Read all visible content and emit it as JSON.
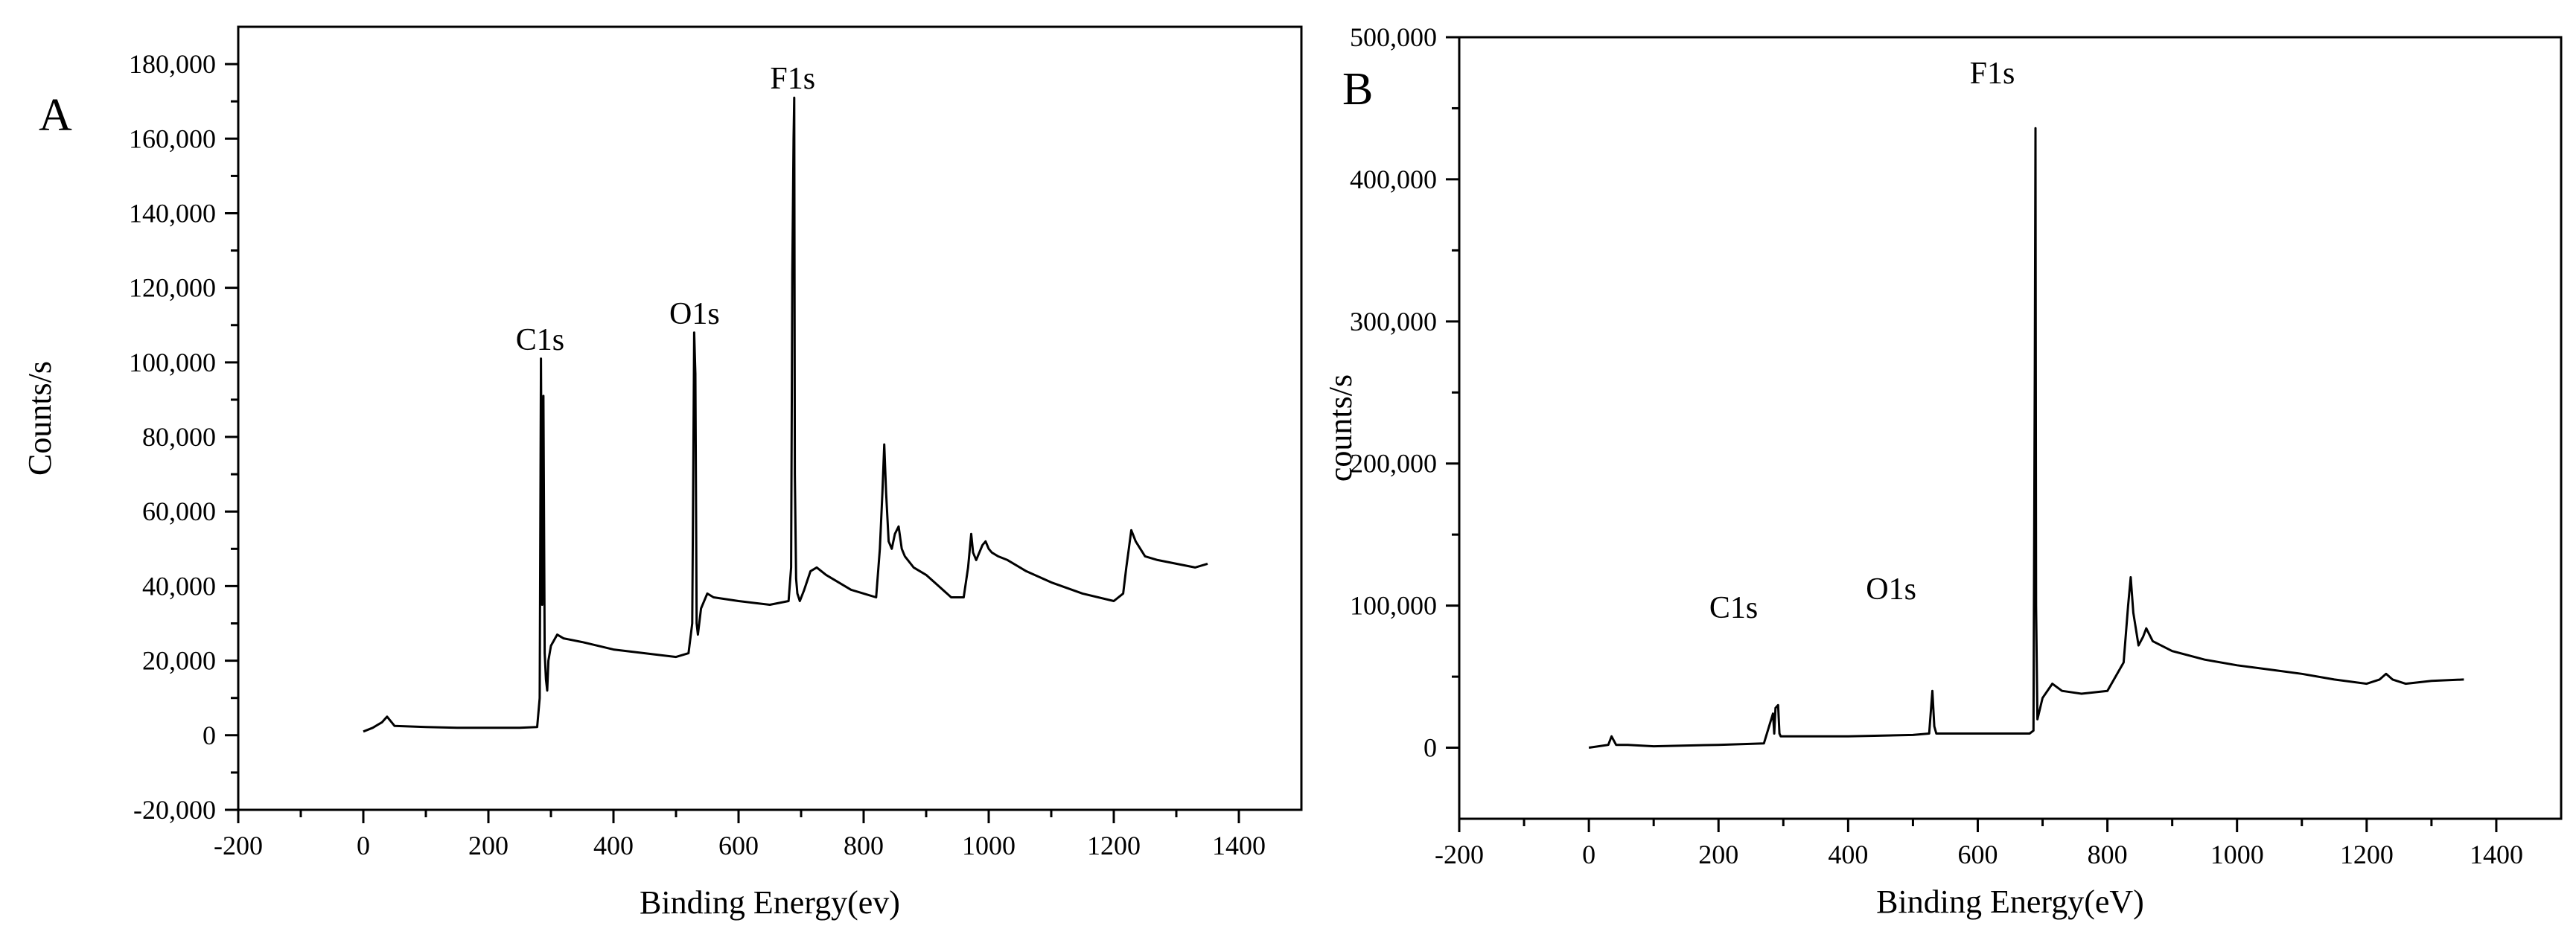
{
  "chart_data": [
    {
      "panel": "A",
      "type": "line",
      "xlabel": "Binding Energy(ev)",
      "ylabel": "Counts/s",
      "xlim": [
        -200,
        1500
      ],
      "ylim": [
        -20000,
        190000
      ],
      "xticks": [
        -200,
        0,
        200,
        400,
        600,
        800,
        1000,
        1200,
        1400
      ],
      "yticks": [
        -20000,
        0,
        20000,
        40000,
        60000,
        80000,
        100000,
        120000,
        140000,
        160000,
        180000
      ],
      "xtick_labels": [
        "-200",
        "0",
        "200",
        "400",
        "600",
        "800",
        "1000",
        "1200",
        "1400"
      ],
      "ytick_labels": [
        "-20,000",
        "0",
        "20,000",
        "40,000",
        "60,000",
        "80,000",
        "100,000",
        "120,000",
        "140,000",
        "160,000",
        "180,000"
      ],
      "grid": false,
      "annotations": [
        {
          "text": "C1s",
          "x": 285,
          "y": 101000
        },
        {
          "text": "O1s",
          "x": 532,
          "y": 108000
        },
        {
          "text": "F1s",
          "x": 689,
          "y": 171000
        }
      ],
      "series": [
        {
          "x": [
            0,
            15,
            30,
            38,
            50,
            100,
            150,
            200,
            250,
            278,
            282,
            284,
            286,
            288,
            290,
            292,
            294,
            296,
            300,
            310,
            320,
            350,
            400,
            450,
            500,
            520,
            526,
            529,
            531,
            533,
            535,
            540,
            550,
            560,
            600,
            650,
            680,
            684,
            686,
            688,
            689,
            690,
            692,
            694,
            698,
            705,
            715,
            725,
            740,
            760,
            780,
            800,
            820,
            826,
            830,
            833,
            836,
            840,
            845,
            850,
            856,
            861,
            866,
            880,
            900,
            920,
            940,
            960,
            967,
            972,
            975,
            980,
            985,
            990,
            995,
            1000,
            1005,
            1015,
            1030,
            1060,
            1100,
            1150,
            1200,
            1215,
            1220,
            1224,
            1228,
            1235,
            1250,
            1270,
            1300,
            1330,
            1350
          ],
          "y": [
            1000,
            2000,
            3500,
            5000,
            2500,
            2200,
            2000,
            2000,
            2000,
            2200,
            10000,
            101000,
            35000,
            91000,
            22000,
            15000,
            12000,
            20000,
            24000,
            27000,
            26000,
            25000,
            23000,
            22000,
            21000,
            22000,
            30000,
            108000,
            97000,
            30000,
            27000,
            34000,
            38000,
            37000,
            36000,
            35000,
            36000,
            45000,
            124000,
            160000,
            171000,
            70000,
            42000,
            38000,
            36000,
            39000,
            44000,
            45000,
            43000,
            41000,
            39000,
            38000,
            37000,
            50000,
            65000,
            78000,
            65000,
            52000,
            50000,
            54000,
            56000,
            50000,
            48000,
            45000,
            43000,
            40000,
            37000,
            37000,
            45000,
            54000,
            49000,
            47000,
            49000,
            51000,
            52000,
            50000,
            49000,
            48000,
            47000,
            44000,
            41000,
            38000,
            36000,
            38000,
            45000,
            50000,
            55000,
            52000,
            48000,
            47000,
            46000,
            45000,
            46000
          ]
        }
      ]
    },
    {
      "panel": "B",
      "type": "line",
      "xlabel": "Binding Energy(eV)",
      "ylabel": "counts/s",
      "xlim": [
        -200,
        1500
      ],
      "ylim": [
        -50000,
        500000
      ],
      "xticks": [
        -200,
        0,
        200,
        400,
        600,
        800,
        1000,
        1200,
        1400
      ],
      "yticks": [
        0,
        100000,
        200000,
        300000,
        400000,
        500000
      ],
      "xtick_labels": [
        "-200",
        "0",
        "200",
        "400",
        "600",
        "800",
        "1000",
        "1200",
        "1400"
      ],
      "ytick_labels": [
        "0",
        "100,000",
        "200,000",
        "300,000",
        "400,000",
        "500,000"
      ],
      "grid": false,
      "annotations": [
        {
          "text": "C1s",
          "x": 290,
          "y": 60000
        },
        {
          "text": "O1s",
          "x": 533,
          "y": 73000
        },
        {
          "text": "F1s",
          "x": 689,
          "y": 436000
        }
      ],
      "series": [
        {
          "x": [
            0,
            30,
            35,
            42,
            60,
            100,
            200,
            270,
            284,
            286,
            288,
            292,
            294,
            296,
            300,
            320,
            400,
            500,
            525,
            530,
            533,
            536,
            540,
            600,
            680,
            686,
            688,
            689,
            690,
            692,
            700,
            715,
            730,
            760,
            800,
            825,
            832,
            836,
            840,
            848,
            855,
            860,
            870,
            900,
            950,
            1000,
            1050,
            1100,
            1150,
            1200,
            1220,
            1230,
            1240,
            1260,
            1300,
            1350
          ],
          "y": [
            0,
            2000,
            8000,
            2000,
            2000,
            1000,
            2000,
            3000,
            24000,
            10000,
            28000,
            30000,
            10000,
            8000,
            8000,
            8000,
            8000,
            9000,
            10000,
            40000,
            15000,
            10000,
            10000,
            10000,
            10000,
            12000,
            267000,
            436000,
            100000,
            20000,
            35000,
            45000,
            40000,
            38000,
            40000,
            60000,
            100000,
            120000,
            95000,
            72000,
            78000,
            84000,
            75000,
            68000,
            62000,
            58000,
            55000,
            52000,
            48000,
            45000,
            48000,
            52000,
            48000,
            45000,
            47000,
            48000
          ]
        }
      ]
    }
  ]
}
